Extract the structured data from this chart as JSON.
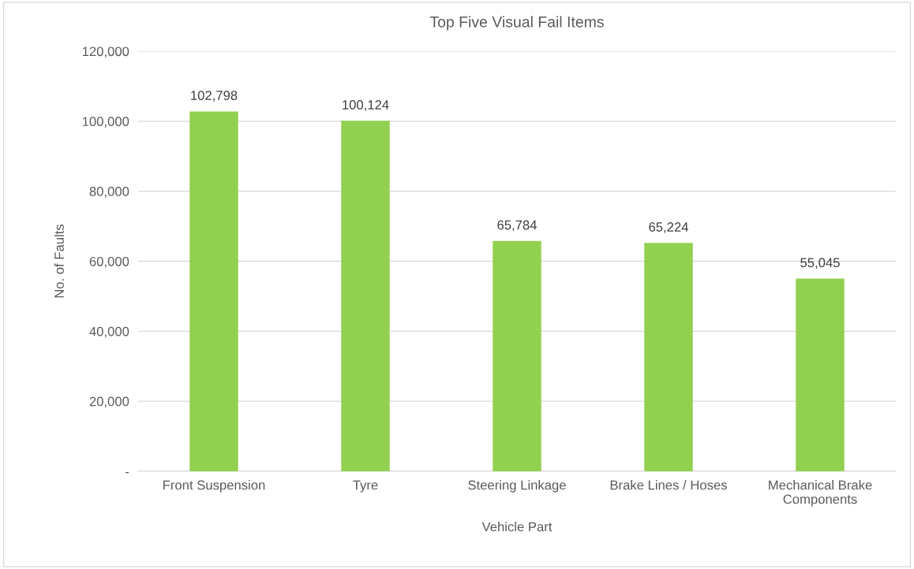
{
  "chart_data": {
    "type": "bar",
    "title": "Top Five Visual Fail Items",
    "xlabel": "Vehicle Part",
    "ylabel": "No. of Faults",
    "categories": [
      "Front Suspension",
      "Tyre",
      "Steering Linkage",
      "Brake Lines / Hoses",
      "Mechanical Brake\nComponents"
    ],
    "values": [
      102798,
      100124,
      65784,
      65224,
      55045
    ],
    "value_labels": [
      "102,798",
      "100,124",
      "65,784",
      "65,224",
      "55,045"
    ],
    "color": "#92d050",
    "ylim": [
      0,
      120000
    ],
    "yticks": [
      {
        "value": 0,
        "label": "-"
      },
      {
        "value": 20000,
        "label": "20,000"
      },
      {
        "value": 40000,
        "label": "40,000"
      },
      {
        "value": 60000,
        "label": "60,000"
      },
      {
        "value": 80000,
        "label": "80,000"
      },
      {
        "value": 100000,
        "label": "100,000"
      },
      {
        "value": 120000,
        "label": "120,000"
      }
    ],
    "grid": "y",
    "legend": false
  }
}
